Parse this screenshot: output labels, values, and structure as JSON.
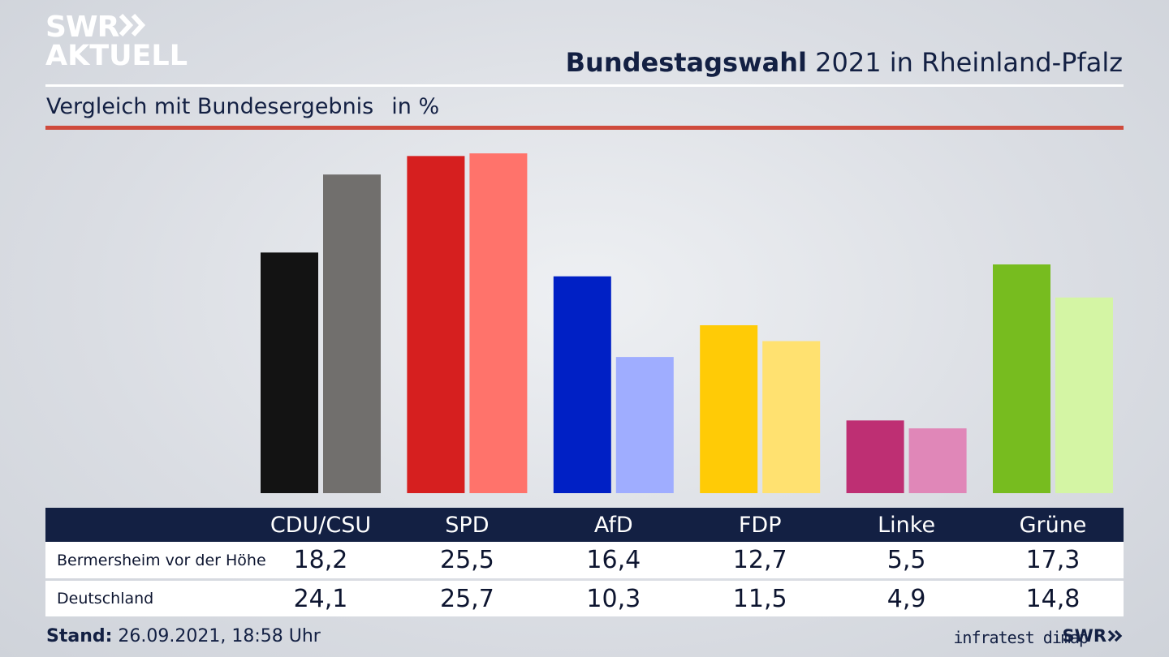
{
  "logo": {
    "line1": "SWR",
    "line2": "AKTUELL"
  },
  "headline": {
    "bold": "Bundestagswahl",
    "rest": " 2021 in Rheinland-Pfalz"
  },
  "subtitle": {
    "text": "Vergleich mit Bundesergebnis",
    "unit": "in %"
  },
  "footer": {
    "stand_label": "Stand:",
    "stand_value": " 26.09.2021, 18:58 Uhr",
    "source": "infratest dimap",
    "brand": "SWR"
  },
  "colors": {
    "CDU/CSU": [
      "#131313",
      "#716f6d"
    ],
    "SPD": [
      "#d61f1f",
      "#ff736b"
    ],
    "AfD": [
      "#0020c5",
      "#9fadff"
    ],
    "FDP": [
      "#ffcb06",
      "#ffe170"
    ],
    "Linke": [
      "#be2f73",
      "#e087b8"
    ],
    "Grüne": [
      "#77bc1f",
      "#d4f5a4"
    ]
  },
  "chart_data": {
    "type": "bar",
    "title": "Bundestagswahl 2021 in Rheinland-Pfalz",
    "subtitle": "Vergleich mit Bundesergebnis in %",
    "categories": [
      "CDU/CSU",
      "SPD",
      "AfD",
      "FDP",
      "Linke",
      "Grüne"
    ],
    "series": [
      {
        "name": "Bermersheim vor der Höhe",
        "values": [
          "18,2",
          "25,5",
          "16,4",
          "12,7",
          "5,5",
          "17,3"
        ]
      },
      {
        "name": "Deutschland",
        "values": [
          "24,1",
          "25,7",
          "10,3",
          "11,5",
          "4,9",
          "14,8"
        ]
      }
    ],
    "ylim": [
      0,
      26
    ]
  }
}
